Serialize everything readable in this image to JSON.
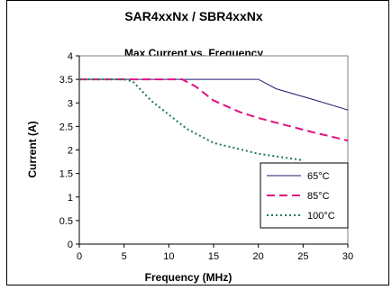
{
  "chart_data": {
    "type": "line",
    "title": "SAR4xxNx / SBR4xxNx",
    "subtitle": "Max Current vs. Frequency",
    "xlabel": "Frequency (MHz)",
    "ylabel": "Current (A)",
    "xlim": [
      0,
      30
    ],
    "ylim": [
      0,
      4
    ],
    "xticks": [
      0,
      5,
      10,
      15,
      20,
      25,
      30
    ],
    "yticks": [
      0,
      0.5,
      1,
      1.5,
      2,
      2.5,
      3,
      3.5,
      4
    ],
    "grid": false,
    "legend": "bottom-right",
    "series": [
      {
        "name": "65°C",
        "color": "#1c1c6e",
        "style": "solid",
        "x": [
          0,
          5,
          10,
          15,
          20,
          22,
          26,
          30
        ],
        "y": [
          3.5,
          3.5,
          3.5,
          3.5,
          3.5,
          3.3,
          3.08,
          2.85
        ]
      },
      {
        "name": "85°C",
        "color": "#e0117f",
        "style": "dashed",
        "x": [
          0,
          5,
          10,
          11.5,
          13,
          15,
          18,
          20,
          22,
          26,
          30
        ],
        "y": [
          3.5,
          3.5,
          3.5,
          3.5,
          3.35,
          3.05,
          2.8,
          2.68,
          2.58,
          2.38,
          2.2
        ]
      },
      {
        "name": "100°C",
        "color": "#1f7a4d",
        "style": "dotted",
        "x": [
          0,
          5,
          6,
          8,
          10,
          12,
          15,
          20,
          25
        ],
        "y": [
          3.5,
          3.5,
          3.45,
          3.05,
          2.75,
          2.45,
          2.15,
          1.92,
          1.78
        ]
      }
    ]
  }
}
